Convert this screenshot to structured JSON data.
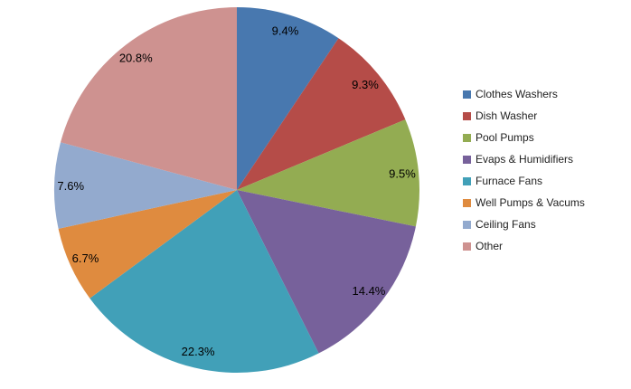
{
  "chart_data": {
    "type": "pie",
    "title": "",
    "categories": [
      "Clothes Washers",
      "Dish Washer",
      "Pool Pumps",
      "Evaps & Humidifiers",
      "Furnace Fans",
      "Well Pumps & Vacums",
      "Ceiling Fans",
      "Other"
    ],
    "values": [
      9.4,
      9.3,
      9.5,
      14.4,
      22.3,
      6.7,
      7.6,
      20.8
    ],
    "slice_labels": [
      "9.4%",
      "9.3%",
      "9.5%",
      "14.4%",
      "22.3%",
      "6.7%",
      "7.6%",
      "20.8%"
    ],
    "colors": [
      "#4878AF",
      "#B54C48",
      "#93AC52",
      "#77619B",
      "#41A0B8",
      "#DF8B3F",
      "#93AACE",
      "#CE9290"
    ],
    "start_angle_deg": 0,
    "direction": "clockwise",
    "label_position": "inside-end",
    "legend_position": "right",
    "background_color": "#FFFFFF",
    "label_text_color": "#000000",
    "legend_text_color": "#1F1F1F"
  }
}
